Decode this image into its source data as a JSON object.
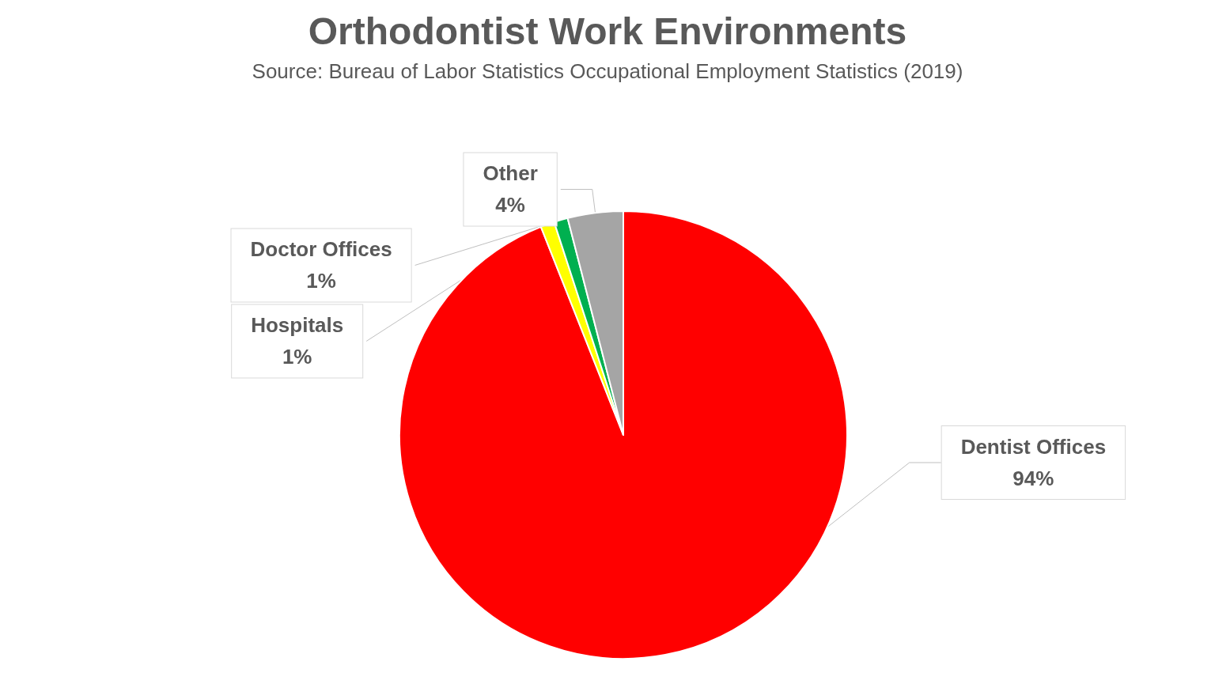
{
  "chart_data": {
    "type": "pie",
    "title": "Orthodontist Work Environments",
    "subtitle": "Source: Bureau of Labor Statistics Occupational Employment Statistics (2019)",
    "categories": [
      "Dentist Offices",
      "Hospitals",
      "Doctor Offices",
      "Other"
    ],
    "values": [
      94,
      1,
      1,
      4
    ],
    "colors": [
      "#ff0000",
      "#ffff00",
      "#00b050",
      "#a5a5a5"
    ],
    "value_labels": [
      "94%",
      "1%",
      "1%",
      "4%"
    ],
    "legend": false
  }
}
